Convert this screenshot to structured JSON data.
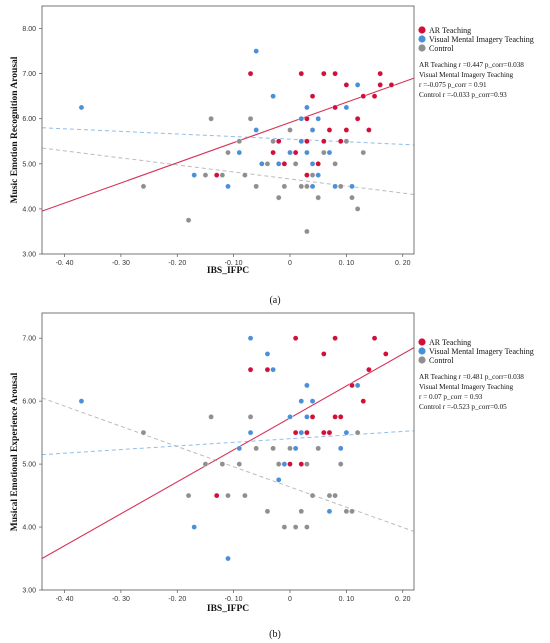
{
  "chart_data": [
    {
      "type": "scatter",
      "caption": "(a)",
      "xlabel": "IBS_IFPC",
      "ylabel": "Music Emotion Recognition Arousal",
      "xlim": [
        -0.44,
        0.22
      ],
      "ylim": [
        3.0,
        8.5
      ],
      "xticks": [
        -0.4,
        -0.3,
        -0.2,
        -0.1,
        0.0,
        0.1,
        0.2
      ],
      "xtick_labels": [
        "-0. 40",
        "-0. 30",
        "-0. 20",
        "-0. 10",
        "0",
        "0. 10",
        "0. 20"
      ],
      "yticks": [
        3,
        4,
        5,
        6,
        7,
        8
      ],
      "ytick_labels": [
        "3.00",
        "4.00",
        "5.00",
        "6.00",
        "7.00",
        "8.00"
      ],
      "legend": [
        {
          "label": "AR Teaching",
          "color": "#d0103a"
        },
        {
          "label": "Visual Mental Imagery Teaching",
          "color": "#4a90d9"
        },
        {
          "label": "Control",
          "color": "#8f8f8f"
        }
      ],
      "stats": [
        "AR Teaching  r =0.447  p_corr=0.038",
        "Visual Mental Imagery Teaching",
        "r =-0.075  p_corr = 0.91",
        "Control  r =-0.033  p_corr=0.93"
      ],
      "fit_lines": [
        {
          "series": 0,
          "x": [
            -0.44,
            0.22
          ],
          "y": [
            3.95,
            6.9
          ],
          "style": "solid"
        },
        {
          "series": 1,
          "x": [
            -0.44,
            0.22
          ],
          "y": [
            5.8,
            5.42
          ],
          "style": "dashed"
        },
        {
          "series": 2,
          "x": [
            -0.44,
            0.22
          ],
          "y": [
            5.35,
            4.32
          ],
          "style": "dashed"
        }
      ],
      "series": [
        {
          "name": "AR Teaching",
          "color": "#d0103a",
          "points": [
            [
              -0.13,
              4.75
            ],
            [
              -0.07,
              7.0
            ],
            [
              -0.03,
              5.25
            ],
            [
              -0.02,
              5.5
            ],
            [
              -0.01,
              5.0
            ],
            [
              0.0,
              5.25
            ],
            [
              0.01,
              5.25
            ],
            [
              0.02,
              5.5
            ],
            [
              0.02,
              7.0
            ],
            [
              0.03,
              6.0
            ],
            [
              0.03,
              5.5
            ],
            [
              0.04,
              6.5
            ],
            [
              0.04,
              5.75
            ],
            [
              0.05,
              5.0
            ],
            [
              0.06,
              7.0
            ],
            [
              0.06,
              5.5
            ],
            [
              0.07,
              5.75
            ],
            [
              0.08,
              6.25
            ],
            [
              0.08,
              7.0
            ],
            [
              0.09,
              5.5
            ],
            [
              0.1,
              6.75
            ],
            [
              0.1,
              5.75
            ],
            [
              0.12,
              6.0
            ],
            [
              0.13,
              6.5
            ],
            [
              0.14,
              5.75
            ],
            [
              0.15,
              6.5
            ],
            [
              0.16,
              7.0
            ],
            [
              0.16,
              6.75
            ],
            [
              0.18,
              6.75
            ],
            [
              0.03,
              4.75
            ]
          ]
        },
        {
          "name": "Visual Mental Imagery Teaching",
          "color": "#4a90d9",
          "points": [
            [
              -0.37,
              6.25
            ],
            [
              -0.17,
              4.75
            ],
            [
              -0.11,
              4.5
            ],
            [
              -0.09,
              5.25
            ],
            [
              -0.06,
              7.5
            ],
            [
              -0.06,
              5.75
            ],
            [
              -0.05,
              5.0
            ],
            [
              -0.03,
              6.5
            ],
            [
              -0.02,
              5.0
            ],
            [
              0.0,
              5.25
            ],
            [
              0.01,
              5.0
            ],
            [
              0.02,
              5.5
            ],
            [
              0.02,
              6.0
            ],
            [
              0.03,
              5.25
            ],
            [
              0.03,
              6.25
            ],
            [
              0.04,
              5.75
            ],
            [
              0.04,
              5.0
            ],
            [
              0.05,
              6.0
            ],
            [
              0.05,
              4.75
            ],
            [
              0.07,
              5.25
            ],
            [
              0.08,
              4.5
            ],
            [
              0.1,
              5.5
            ],
            [
              0.1,
              6.25
            ],
            [
              0.11,
              4.5
            ],
            [
              0.12,
              6.75
            ],
            [
              0.04,
              4.5
            ]
          ]
        },
        {
          "name": "Control",
          "color": "#8f8f8f",
          "points": [
            [
              -0.26,
              4.5
            ],
            [
              -0.18,
              3.75
            ],
            [
              -0.15,
              4.75
            ],
            [
              -0.14,
              6.0
            ],
            [
              -0.12,
              4.75
            ],
            [
              -0.11,
              5.25
            ],
            [
              -0.09,
              5.5
            ],
            [
              -0.08,
              4.75
            ],
            [
              -0.07,
              6.0
            ],
            [
              -0.06,
              4.5
            ],
            [
              -0.04,
              5.0
            ],
            [
              -0.03,
              5.5
            ],
            [
              -0.02,
              4.25
            ],
            [
              -0.01,
              4.5
            ],
            [
              0.0,
              5.75
            ],
            [
              0.01,
              5.0
            ],
            [
              0.02,
              4.5
            ],
            [
              0.03,
              3.5
            ],
            [
              0.04,
              4.75
            ],
            [
              0.05,
              4.25
            ],
            [
              0.06,
              5.25
            ],
            [
              0.08,
              5.0
            ],
            [
              0.09,
              4.5
            ],
            [
              0.1,
              5.5
            ],
            [
              0.11,
              4.25
            ],
            [
              0.12,
              4.0
            ],
            [
              0.13,
              5.25
            ],
            [
              0.03,
              4.5
            ]
          ]
        }
      ]
    },
    {
      "type": "scatter",
      "caption": "(b)",
      "xlabel": "IBS_IFPC",
      "ylabel": "Musical Emotional Experience Arousal",
      "xlim": [
        -0.44,
        0.22
      ],
      "ylim": [
        3.0,
        7.4
      ],
      "xticks": [
        -0.4,
        -0.3,
        -0.2,
        -0.1,
        0.0,
        0.1,
        0.2
      ],
      "xtick_labels": [
        "-0. 40",
        "-0. 30",
        "-0. 20",
        "-0. 10",
        "0",
        "0. 10",
        "0. 20"
      ],
      "yticks": [
        3,
        4,
        5,
        6,
        7
      ],
      "ytick_labels": [
        "3.00",
        "4.00",
        "5.00",
        "6.00",
        "7.00"
      ],
      "legend": [
        {
          "label": "AR Teaching",
          "color": "#d0103a"
        },
        {
          "label": "Visual Mental Imagery Teaching",
          "color": "#4a90d9"
        },
        {
          "label": "Control",
          "color": "#8f8f8f"
        }
      ],
      "stats": [
        "AR Teaching  r =0.481  p_corr=0.038",
        "Visual Mental Imagery Teaching",
        "r = 0.07   p_corr = 0.93",
        "Control  r =-0.523  p_corr=0.05"
      ],
      "fit_lines": [
        {
          "series": 0,
          "x": [
            -0.44,
            0.22
          ],
          "y": [
            3.5,
            6.85
          ],
          "style": "solid"
        },
        {
          "series": 1,
          "x": [
            -0.44,
            0.22
          ],
          "y": [
            5.15,
            5.53
          ],
          "style": "dashed"
        },
        {
          "series": 2,
          "x": [
            -0.44,
            0.22
          ],
          "y": [
            6.05,
            3.93
          ],
          "style": "dashed"
        }
      ],
      "series": [
        {
          "name": "AR Teaching",
          "color": "#d0103a",
          "points": [
            [
              -0.13,
              4.5
            ],
            [
              -0.07,
              6.5
            ],
            [
              -0.04,
              6.5
            ],
            [
              -0.02,
              5.0
            ],
            [
              -0.01,
              5.0
            ],
            [
              0.0,
              5.0
            ],
            [
              0.01,
              7.0
            ],
            [
              0.01,
              5.5
            ],
            [
              0.02,
              5.5
            ],
            [
              0.03,
              6.25
            ],
            [
              0.03,
              5.5
            ],
            [
              0.04,
              5.75
            ],
            [
              0.06,
              5.5
            ],
            [
              0.06,
              6.75
            ],
            [
              0.07,
              5.5
            ],
            [
              0.08,
              5.75
            ],
            [
              0.08,
              7.0
            ],
            [
              0.09,
              5.75
            ],
            [
              0.1,
              5.5
            ],
            [
              0.11,
              6.25
            ],
            [
              0.13,
              6.0
            ],
            [
              0.14,
              6.5
            ],
            [
              0.15,
              7.0
            ],
            [
              0.17,
              6.75
            ],
            [
              0.02,
              5.0
            ]
          ]
        },
        {
          "name": "Visual Mental Imagery Teaching",
          "color": "#4a90d9",
          "points": [
            [
              -0.37,
              6.0
            ],
            [
              -0.17,
              4.0
            ],
            [
              -0.11,
              3.5
            ],
            [
              -0.09,
              5.25
            ],
            [
              -0.07,
              7.0
            ],
            [
              -0.07,
              5.5
            ],
            [
              -0.04,
              6.75
            ],
            [
              -0.03,
              6.5
            ],
            [
              -0.02,
              4.75
            ],
            [
              0.0,
              5.75
            ],
            [
              0.01,
              5.25
            ],
            [
              0.02,
              5.5
            ],
            [
              0.02,
              6.0
            ],
            [
              0.03,
              6.25
            ],
            [
              0.03,
              5.75
            ],
            [
              0.04,
              6.0
            ],
            [
              0.05,
              5.25
            ],
            [
              0.07,
              4.25
            ],
            [
              0.09,
              5.25
            ],
            [
              0.1,
              5.5
            ],
            [
              0.12,
              6.25
            ],
            [
              -0.01,
              5.0
            ]
          ]
        },
        {
          "name": "Control",
          "color": "#8f8f8f",
          "points": [
            [
              -0.26,
              5.5
            ],
            [
              -0.18,
              4.5
            ],
            [
              -0.15,
              5.0
            ],
            [
              -0.14,
              5.75
            ],
            [
              -0.12,
              5.0
            ],
            [
              -0.11,
              4.5
            ],
            [
              -0.09,
              5.0
            ],
            [
              -0.08,
              4.5
            ],
            [
              -0.07,
              5.75
            ],
            [
              -0.06,
              5.25
            ],
            [
              -0.04,
              4.25
            ],
            [
              -0.03,
              5.25
            ],
            [
              -0.02,
              5.0
            ],
            [
              -0.01,
              4.0
            ],
            [
              0.0,
              5.25
            ],
            [
              0.01,
              4.0
            ],
            [
              0.02,
              4.25
            ],
            [
              0.03,
              4.0
            ],
            [
              0.04,
              4.5
            ],
            [
              0.05,
              5.25
            ],
            [
              0.07,
              4.5
            ],
            [
              0.08,
              4.5
            ],
            [
              0.09,
              5.0
            ],
            [
              0.1,
              4.25
            ],
            [
              0.11,
              4.25
            ],
            [
              0.12,
              5.5
            ],
            [
              0.03,
              5.0
            ]
          ]
        }
      ]
    }
  ]
}
